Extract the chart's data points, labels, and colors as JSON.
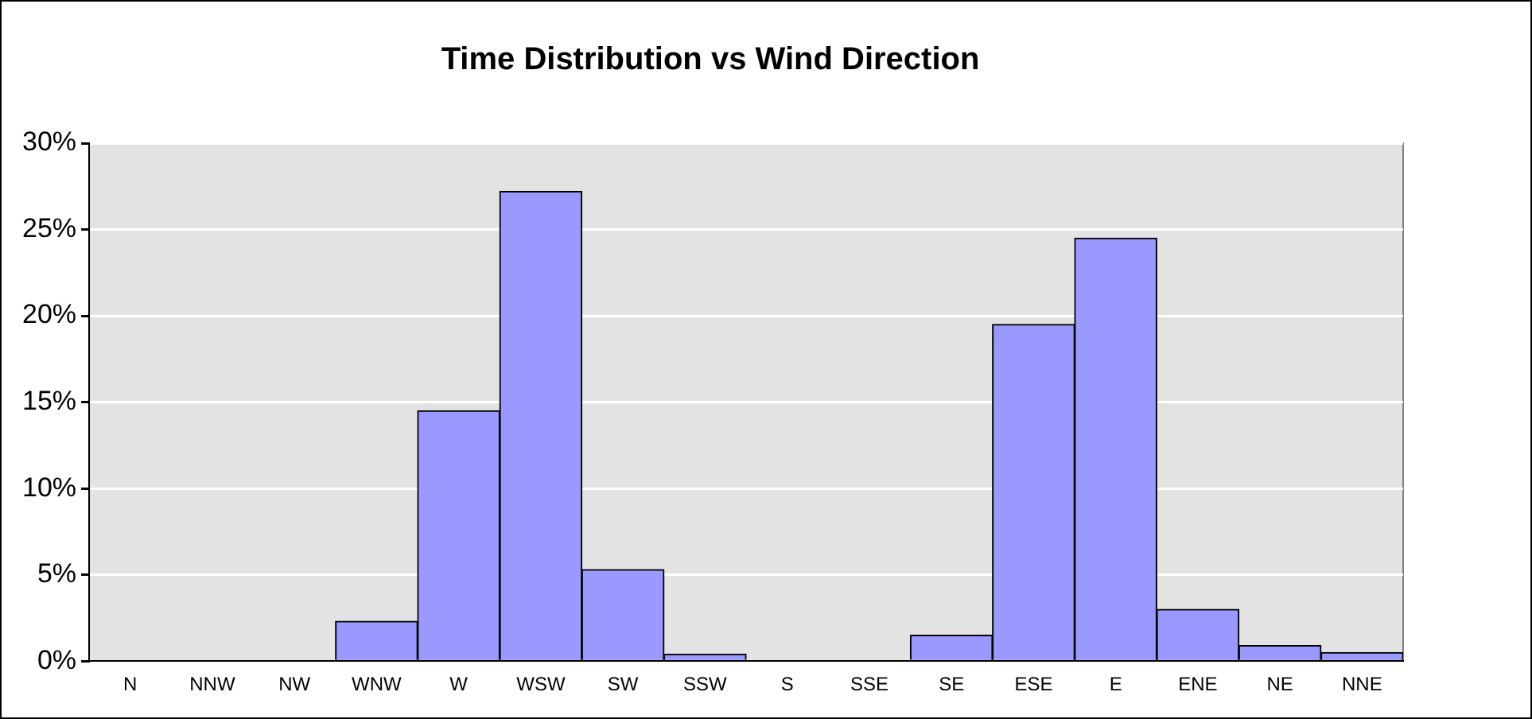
{
  "chart_data": {
    "type": "bar",
    "title": "Time Distribution vs Wind Direction",
    "categories": [
      "N",
      "NNW",
      "NW",
      "WNW",
      "W",
      "WSW",
      "SW",
      "SSW",
      "S",
      "SSE",
      "SE",
      "ESE",
      "E",
      "ENE",
      "NE",
      "NNE"
    ],
    "values": [
      0,
      0,
      0,
      2.3,
      14.5,
      27.2,
      5.3,
      0.4,
      0,
      0,
      1.5,
      19.5,
      24.5,
      3.0,
      0.9,
      0.5
    ],
    "color": "#9999ff",
    "ylim": [
      0,
      30
    ],
    "yticks": [
      {
        "value": 0,
        "label": "0%"
      },
      {
        "value": 5,
        "label": "5%"
      },
      {
        "value": 10,
        "label": "10%"
      },
      {
        "value": 15,
        "label": "15%"
      },
      {
        "value": 20,
        "label": "20%"
      },
      {
        "value": 25,
        "label": "25%"
      },
      {
        "value": 30,
        "label": "30%"
      }
    ],
    "grid": "y",
    "legend": false
  }
}
